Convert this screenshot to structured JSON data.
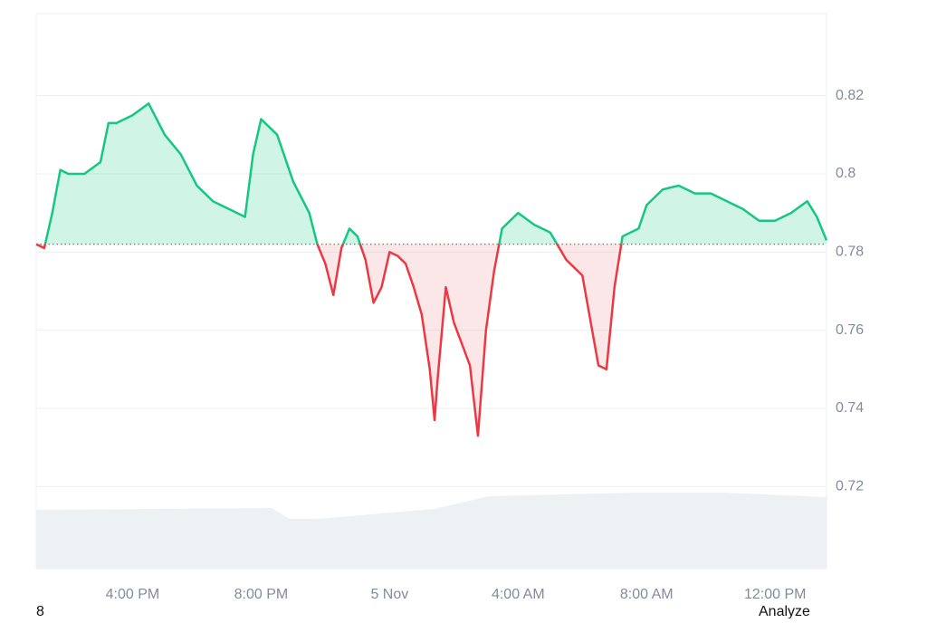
{
  "chart_data": {
    "type": "line",
    "x": [
      13,
      13.25,
      13.5,
      13.75,
      14,
      14.5,
      15,
      15.25,
      15.5,
      16,
      16.5,
      17,
      17.5,
      18,
      18.5,
      19,
      19.5,
      19.75,
      20,
      20.5,
      21,
      21.5,
      21.75,
      22,
      22.25,
      22.5,
      22.75,
      23,
      23.25,
      23.5,
      23.75,
      24,
      24.25,
      24.5,
      24.75,
      25,
      25.25,
      25.4,
      25.5,
      25.75,
      26,
      26.5,
      26.75,
      27,
      27.25,
      27.5,
      28,
      28.5,
      29,
      29.5,
      30,
      30.5,
      30.75,
      31,
      31.25,
      31.75,
      32,
      32.5,
      33,
      33.5,
      34,
      34.5,
      35,
      35.5,
      36,
      36.5,
      37,
      37.3,
      37.6
    ],
    "values": [
      0.782,
      0.781,
      0.79,
      0.801,
      0.8,
      0.8,
      0.803,
      0.813,
      0.813,
      0.815,
      0.818,
      0.81,
      0.805,
      0.797,
      0.793,
      0.791,
      0.789,
      0.805,
      0.814,
      0.81,
      0.798,
      0.79,
      0.782,
      0.777,
      0.769,
      0.781,
      0.786,
      0.784,
      0.778,
      0.767,
      0.771,
      0.78,
      0.779,
      0.777,
      0.771,
      0.764,
      0.75,
      0.737,
      0.748,
      0.771,
      0.762,
      0.751,
      0.733,
      0.76,
      0.775,
      0.786,
      0.79,
      0.787,
      0.785,
      0.778,
      0.774,
      0.751,
      0.75,
      0.771,
      0.784,
      0.786,
      0.792,
      0.796,
      0.797,
      0.795,
      0.795,
      0.793,
      0.791,
      0.788,
      0.788,
      0.79,
      0.793,
      0.789,
      0.783
    ],
    "baseline": 0.782,
    "color_above": "#16c784",
    "color_below": "#ea3943",
    "xlim": [
      13,
      37.6
    ],
    "xticks": [
      {
        "value": 16,
        "label": "4:00 PM"
      },
      {
        "value": 20,
        "label": "8:00 PM"
      },
      {
        "value": 24,
        "label": "5 Nov"
      },
      {
        "value": 28,
        "label": "4:00 AM"
      },
      {
        "value": 32,
        "label": "8:00 AM"
      },
      {
        "value": 36,
        "label": "12:00 PM"
      }
    ],
    "ylim": [
      0.699,
      0.841
    ],
    "yticks": [
      0.72,
      0.74,
      0.76,
      0.78,
      0.8,
      0.82
    ],
    "grid": true
  },
  "footer_left": "8",
  "footer_right": "Analyze"
}
